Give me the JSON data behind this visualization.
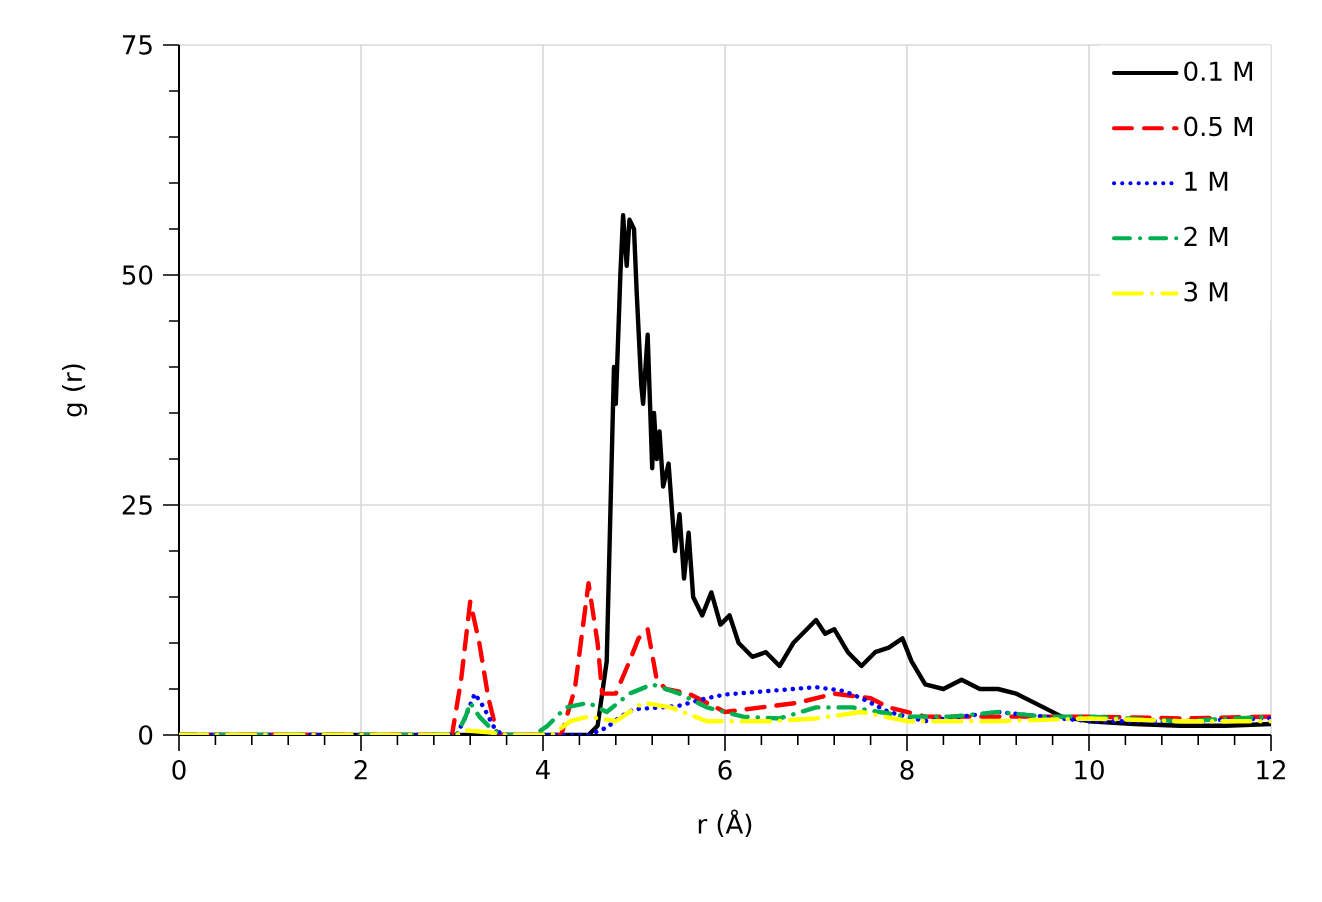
{
  "chart_data": {
    "type": "line",
    "xlabel": "r (Å)",
    "ylabel": "g (r)",
    "xlim": [
      0,
      12
    ],
    "ylim": [
      0,
      75
    ],
    "xticks": [
      0,
      2,
      4,
      6,
      8,
      10,
      12
    ],
    "yticks": [
      0,
      25,
      50,
      75
    ],
    "grid": true,
    "legend": "top right",
    "marker": "none",
    "series": [
      {
        "name": "0.1 M",
        "color": "#000000",
        "line_style": "solid",
        "x": [
          0,
          4.5,
          4.6,
          4.7,
          4.75,
          4.78,
          4.8,
          4.85,
          4.88,
          4.92,
          4.95,
          5.0,
          5.03,
          5.08,
          5.1,
          5.15,
          5.2,
          5.22,
          5.25,
          5.28,
          5.32,
          5.38,
          5.45,
          5.5,
          5.55,
          5.6,
          5.65,
          5.75,
          5.85,
          5.95,
          6.05,
          6.15,
          6.3,
          6.45,
          6.6,
          6.75,
          6.9,
          7.0,
          7.1,
          7.2,
          7.35,
          7.5,
          7.65,
          7.8,
          7.95,
          8.05,
          8.2,
          8.4,
          8.6,
          8.8,
          9.0,
          9.2,
          9.5,
          9.7,
          10.0,
          10.5,
          11.0,
          11.5,
          12.0
        ],
        "values": [
          0,
          0,
          1,
          8,
          28,
          40,
          36,
          50,
          56.5,
          51,
          56,
          55,
          48,
          38,
          36,
          43.5,
          29,
          35,
          30,
          33,
          27,
          29.5,
          20,
          24,
          17,
          22,
          15,
          13,
          15.5,
          12,
          13,
          10,
          8.5,
          9,
          7.5,
          10,
          11.5,
          12.5,
          11,
          11.5,
          9,
          7.5,
          9,
          9.5,
          10.5,
          8,
          5.5,
          5,
          6,
          5,
          5,
          4.5,
          3,
          2,
          1.5,
          1.2,
          1,
          1,
          1.2
        ]
      },
      {
        "name": "0.5 M",
        "color": "#ff0000",
        "line_style": "dashed",
        "x": [
          0,
          3.0,
          3.1,
          3.2,
          3.3,
          3.4,
          3.5,
          4.2,
          4.35,
          4.5,
          4.6,
          4.65,
          4.8,
          4.95,
          5.05,
          5.15,
          5.25,
          5.35,
          5.6,
          5.8,
          6.0,
          6.4,
          6.8,
          7.2,
          7.6,
          7.8,
          8.2,
          9.0,
          10.0,
          11.0,
          12.0
        ],
        "values": [
          0,
          0,
          6,
          14.5,
          10,
          4,
          0,
          0,
          5,
          16.5,
          10,
          4.5,
          4.5,
          8,
          10.5,
          11.5,
          6,
          5,
          4.5,
          3.5,
          2.5,
          3,
          3.5,
          4.5,
          4,
          3,
          2,
          2,
          2,
          1.8,
          2
        ]
      },
      {
        "name": "1 M",
        "color": "#0000ff",
        "line_style": "dotted",
        "x": [
          0,
          3.05,
          3.15,
          3.25,
          3.35,
          3.45,
          3.55,
          4.5,
          4.7,
          4.85,
          5.0,
          5.3,
          5.5,
          5.8,
          6.0,
          6.5,
          7.0,
          7.3,
          7.5,
          7.8,
          8.2,
          8.6,
          9.0,
          9.5,
          10.0,
          11.0,
          12.0
        ],
        "values": [
          0,
          0,
          2,
          4.5,
          3,
          1,
          0,
          0,
          0.8,
          2,
          2.8,
          3,
          3.2,
          4,
          4.4,
          4.8,
          5.2,
          4.8,
          4,
          2.5,
          1.5,
          2,
          2.5,
          2,
          1.5,
          1.5,
          1.8
        ]
      },
      {
        "name": "2 M",
        "color": "#00b050",
        "line_style": "dashdot",
        "x": [
          0,
          3.05,
          3.15,
          3.2,
          3.3,
          3.45,
          3.6,
          3.9,
          4.05,
          4.25,
          4.5,
          4.7,
          4.95,
          5.2,
          5.5,
          5.8,
          6.2,
          6.6,
          7.0,
          7.4,
          7.7,
          8.0,
          8.5,
          9.0,
          9.5,
          10.0,
          11.0,
          12.0
        ],
        "values": [
          0,
          0,
          2,
          3.5,
          2,
          0.5,
          0,
          0,
          1,
          3,
          3.5,
          2.5,
          4.5,
          5.5,
          4.5,
          3,
          2,
          1.8,
          3,
          3,
          2.5,
          2,
          2,
          2.5,
          2,
          2,
          1.5,
          2
        ]
      },
      {
        "name": "3 M",
        "color": "#ffff00",
        "line_style": "longdashdot",
        "x": [
          0,
          3.05,
          3.15,
          3.4,
          3.6,
          4.1,
          4.3,
          4.5,
          4.8,
          5.1,
          5.4,
          5.8,
          6.5,
          7.0,
          7.5,
          8.0,
          9.0,
          10.0,
          11.0,
          12.0
        ],
        "values": [
          0,
          0,
          0.5,
          0.3,
          0,
          0,
          1.5,
          2,
          1.5,
          3.5,
          3,
          1.5,
          1.5,
          1.8,
          2.5,
          1.5,
          1.5,
          1.8,
          1.5,
          1.5
        ]
      }
    ]
  }
}
